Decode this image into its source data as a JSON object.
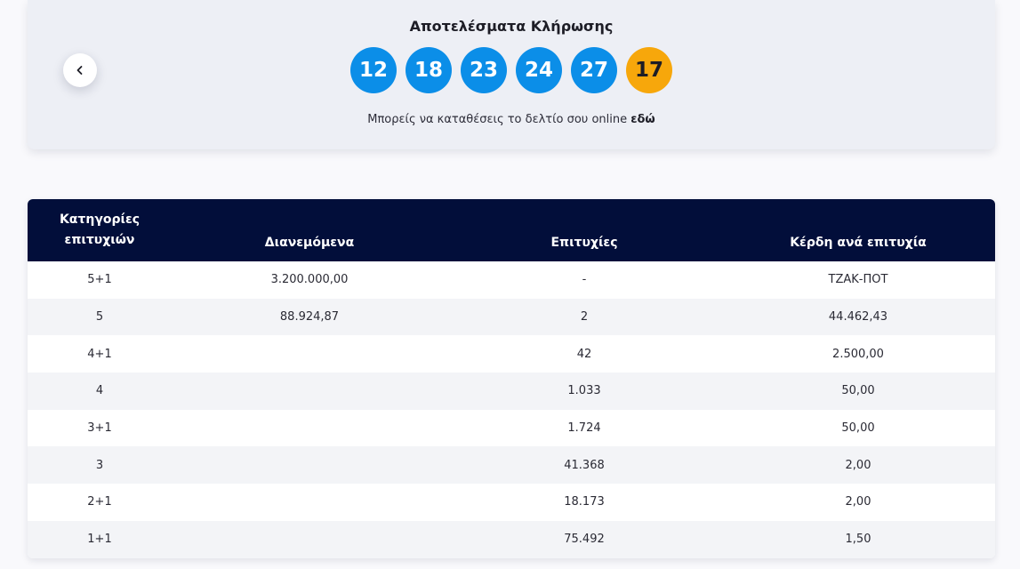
{
  "draw": {
    "title": "Αποτελέσματα Κλήρωσης",
    "numbers": [
      "12",
      "18",
      "23",
      "24",
      "27"
    ],
    "joker": "17",
    "online_text": "Μπορείς να καταθέσεις το δελτίο σου online",
    "online_link": "εδώ",
    "colors": {
      "ball": "#0b8ee8",
      "joker": "#f7a70b",
      "header": "#020e3a"
    }
  },
  "table": {
    "headers": {
      "category_line1": "Κατηγορίες",
      "category_line2": "επιτυχιών",
      "distributed": "Διανεμόμενα",
      "winners": "Επιτυχίες",
      "prize": "Κέρδη ανά επιτυχία"
    },
    "rows": [
      {
        "category": "5+1",
        "distributed": "3.200.000,00",
        "winners": "-",
        "prize": "ΤΖΑΚ-ΠΟΤ"
      },
      {
        "category": "5",
        "distributed": "88.924,87",
        "winners": "2",
        "prize": "44.462,43"
      },
      {
        "category": "4+1",
        "distributed": "",
        "winners": "42",
        "prize": "2.500,00"
      },
      {
        "category": "4",
        "distributed": "",
        "winners": "1.033",
        "prize": "50,00"
      },
      {
        "category": "3+1",
        "distributed": "",
        "winners": "1.724",
        "prize": "50,00"
      },
      {
        "category": "3",
        "distributed": "",
        "winners": "41.368",
        "prize": "2,00"
      },
      {
        "category": "2+1",
        "distributed": "",
        "winners": "18.173",
        "prize": "2,00"
      },
      {
        "category": "1+1",
        "distributed": "",
        "winners": "75.492",
        "prize": "1,50"
      }
    ]
  }
}
